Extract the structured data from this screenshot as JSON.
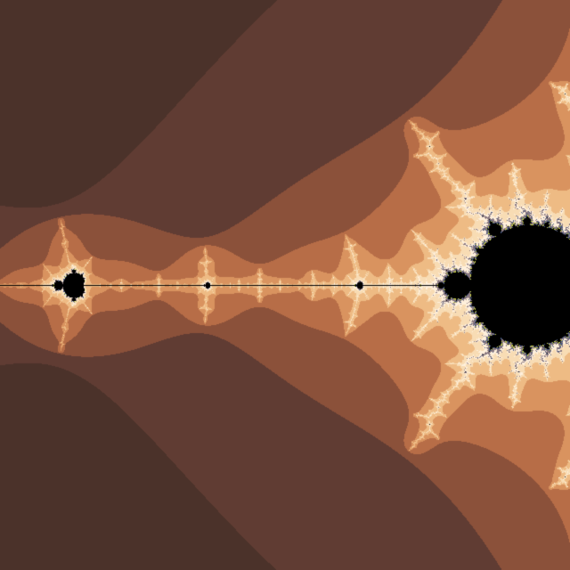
{
  "scene": {
    "subject": "mandelbrot-set-fractal",
    "icon": "fractal-image",
    "center": {
      "re": -1.55,
      "im": 0.0
    },
    "view_width": 0.56,
    "max_iterations": 400,
    "colors": {
      "interior": "#000000",
      "bands": [
        "#000000",
        "#1f1614",
        "#34241f",
        "#4b322a",
        "#603c33",
        "#8b513a",
        "#b76d47",
        "#d9935f",
        "#eebb84",
        "#f8dcb4",
        "#fff0dc",
        "#8a7880",
        "#4a5a80",
        "#c8d040"
      ]
    }
  }
}
